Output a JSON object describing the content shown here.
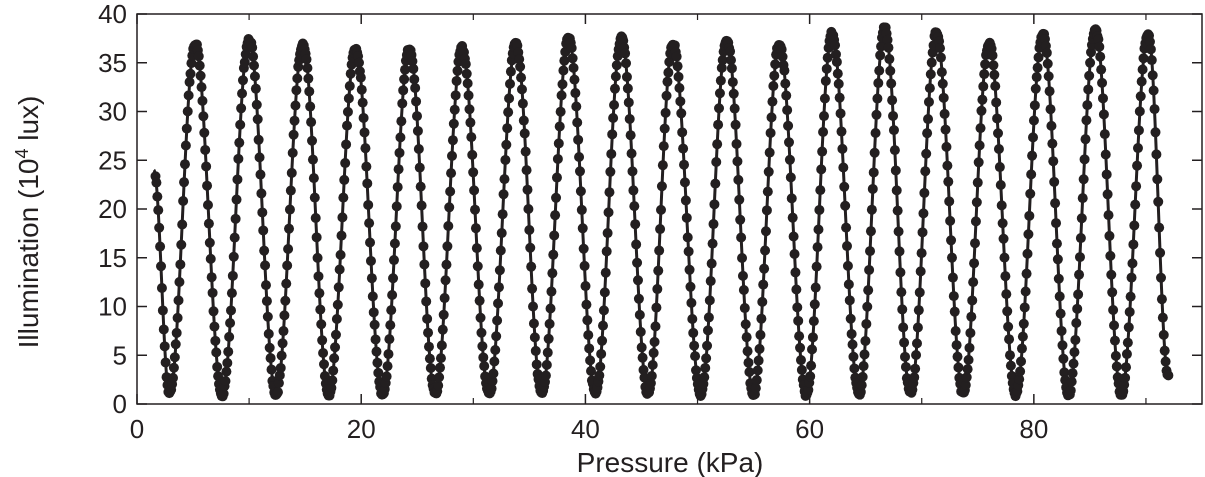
{
  "chart_data": {
    "type": "scatter",
    "title": "",
    "xlabel": "Pressure (kPa)",
    "ylabel_main": "Illumination (10",
    "ylabel_sup": "4",
    "ylabel_end": " lux)",
    "xlim": [
      0,
      95
    ],
    "ylim": [
      0,
      40
    ],
    "xticks": [
      "0",
      "20",
      "40",
      "60",
      "80"
    ],
    "yticks": [
      "0",
      "5",
      "10",
      "15",
      "20",
      "25",
      "30",
      "35",
      "40"
    ],
    "grid": false,
    "legend": "none",
    "series_color": "#231f20",
    "series": [
      {
        "mode": "markers+line",
        "pressure_start": 1.5,
        "pressure_end": 92,
        "minimum_value": 1.0,
        "start_value": 24,
        "end_value": 2.8,
        "peaks": [
          {
            "x": 5.2,
            "y": 37.0
          },
          {
            "x": 10.0,
            "y": 37.5
          },
          {
            "x": 14.8,
            "y": 37.0
          },
          {
            "x": 19.5,
            "y": 36.5
          },
          {
            "x": 24.3,
            "y": 36.5
          },
          {
            "x": 29.0,
            "y": 36.5
          },
          {
            "x": 33.8,
            "y": 37.0
          },
          {
            "x": 38.5,
            "y": 37.5
          },
          {
            "x": 43.2,
            "y": 37.5
          },
          {
            "x": 47.8,
            "y": 37.0
          },
          {
            "x": 52.6,
            "y": 37.5
          },
          {
            "x": 57.3,
            "y": 37.0
          },
          {
            "x": 62.0,
            "y": 38.0
          },
          {
            "x": 66.7,
            "y": 38.5
          },
          {
            "x": 71.3,
            "y": 38.0
          },
          {
            "x": 76.0,
            "y": 37.0
          },
          {
            "x": 80.8,
            "y": 38.0
          },
          {
            "x": 85.5,
            "y": 38.5
          },
          {
            "x": 90.2,
            "y": 38.0
          }
        ],
        "troughs": [
          {
            "x": 2.9,
            "y": 1.0
          },
          {
            "x": 7.6,
            "y": 1.0
          },
          {
            "x": 12.4,
            "y": 1.0
          },
          {
            "x": 17.1,
            "y": 1.0
          },
          {
            "x": 21.9,
            "y": 1.0
          },
          {
            "x": 26.6,
            "y": 1.0
          },
          {
            "x": 31.4,
            "y": 1.0
          },
          {
            "x": 36.1,
            "y": 1.0
          },
          {
            "x": 40.9,
            "y": 1.0
          },
          {
            "x": 45.6,
            "y": 1.0
          },
          {
            "x": 50.3,
            "y": 1.0
          },
          {
            "x": 55.0,
            "y": 1.0
          },
          {
            "x": 59.7,
            "y": 1.0
          },
          {
            "x": 64.4,
            "y": 1.0
          },
          {
            "x": 69.0,
            "y": 1.0
          },
          {
            "x": 73.7,
            "y": 1.0
          },
          {
            "x": 78.4,
            "y": 1.0
          },
          {
            "x": 83.1,
            "y": 1.0
          },
          {
            "x": 87.8,
            "y": 1.0
          }
        ]
      }
    ]
  }
}
